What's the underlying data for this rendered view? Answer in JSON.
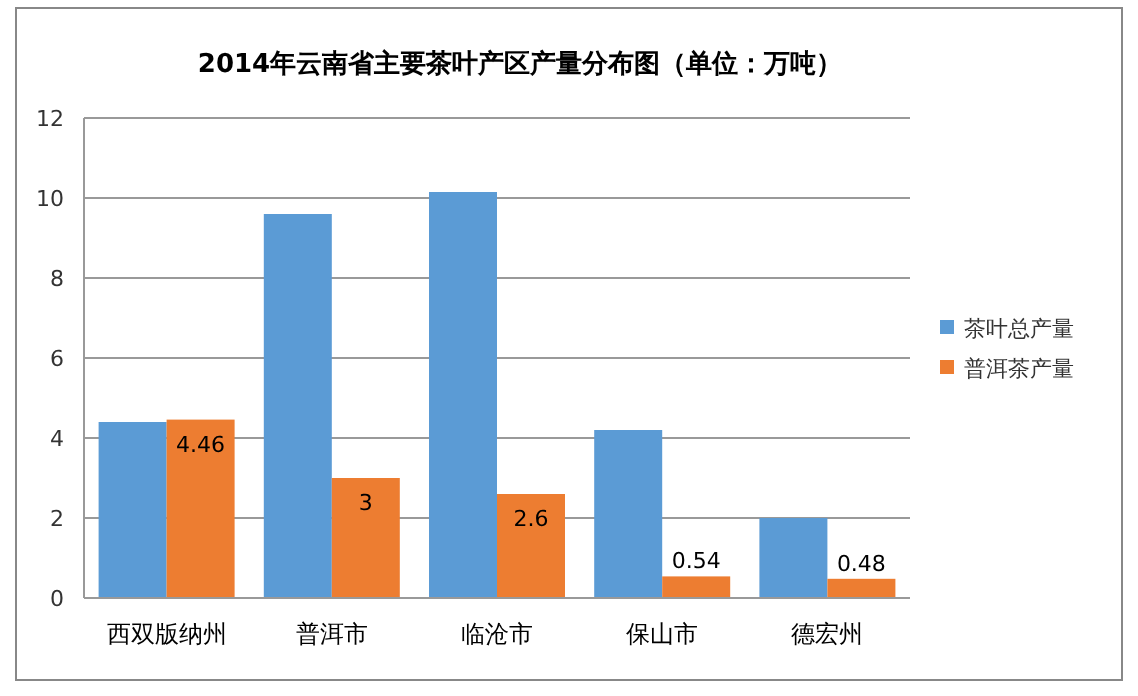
{
  "chart_data": {
    "type": "bar",
    "title": "2014年云南省主要茶叶产区产量分布图（单位：万吨）",
    "categories": [
      "西双版纳州",
      "普洱市",
      "临沧市",
      "保山市",
      "德宏州"
    ],
    "series": [
      {
        "name": "茶叶总产量",
        "color": "#5b9bd5",
        "values": [
          4.4,
          9.6,
          10.15,
          4.2,
          2.0
        ]
      },
      {
        "name": "普洱茶产量",
        "color": "#ed7d31",
        "values": [
          4.46,
          3,
          2.6,
          0.54,
          0.48
        ],
        "value_labels": [
          "4.46",
          "3",
          "2.6",
          "0.54",
          "0.48"
        ]
      }
    ],
    "ylim": [
      0,
      12
    ],
    "yticks": [
      0,
      2,
      4,
      6,
      8,
      10,
      12
    ],
    "grid": "y",
    "legend": "right"
  }
}
